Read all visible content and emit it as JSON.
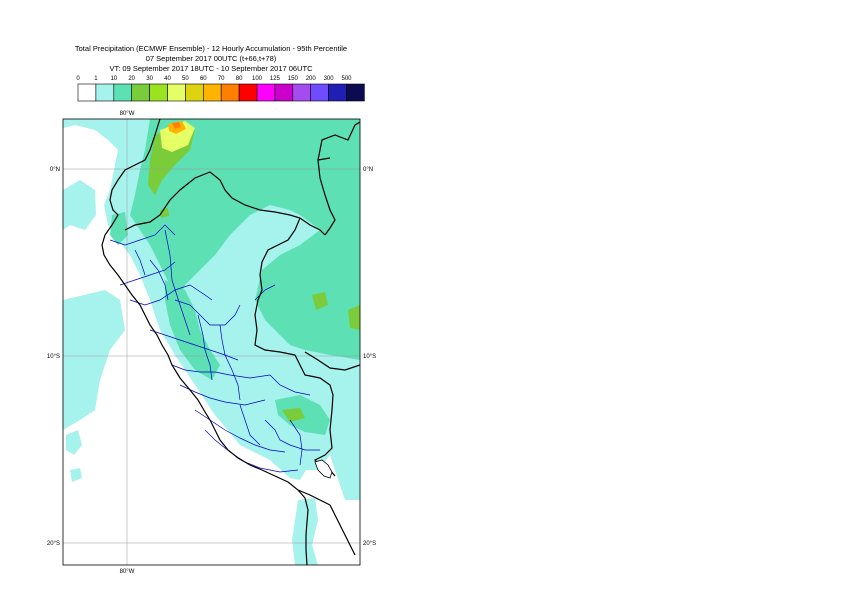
{
  "title": {
    "line1": "Total Precipitation (ECMWF Ensemble) - 12 Hourly Accumulation - 95th Percentile",
    "line2": "07 September 2017 00UTC (t+66,t+78)",
    "line3": "VT: 09 September 2017 18UTC - 10 September 2017 06UTC"
  },
  "legend": {
    "ticks": [
      "0",
      "1",
      "10",
      "20",
      "30",
      "40",
      "50",
      "60",
      "70",
      "80",
      "100",
      "125",
      "150",
      "200",
      "300",
      "500"
    ],
    "colors": [
      "#ffffff",
      "#a6f2ec",
      "#5ce0b4",
      "#7acc3a",
      "#9be31e",
      "#e5ff66",
      "#ddd30e",
      "#ffb400",
      "#ff8000",
      "#ff0000",
      "#ff00ff",
      "#cc00cc",
      "#a54cf0",
      "#6f4cff",
      "#1f1fb4",
      "#0b0b52"
    ]
  },
  "map": {
    "lon_labels": {
      "top": "80°W",
      "bottom": "80°W"
    },
    "lat_labels": {
      "left": [
        "0°N",
        "10°S",
        "20°S"
      ],
      "right": [
        "0°N",
        "10°S",
        "20°S"
      ]
    },
    "colors": {
      "land_border": "#000000",
      "province_border": "#0000c8",
      "grid": "#9a9a9a"
    }
  }
}
